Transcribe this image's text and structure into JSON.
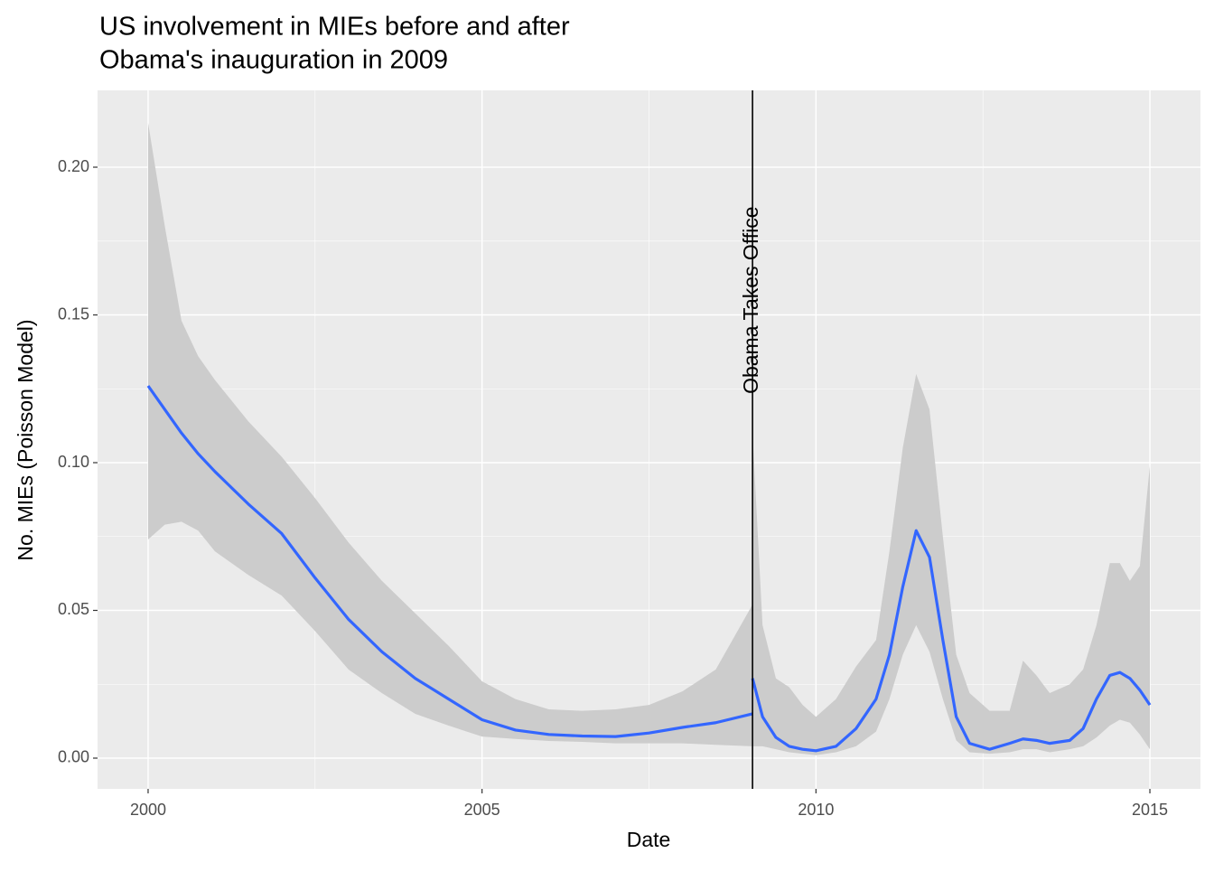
{
  "chart_data": {
    "type": "line",
    "title": [
      "US involvement in MIEs before and after",
      "Obama's inauguration in 2009"
    ],
    "x_label": "Date",
    "y_label": "No. MIEs (Poisson Model)",
    "x": [
      2000,
      2000.25,
      2000.5,
      2000.75,
      2001,
      2001.5,
      2002,
      2002.5,
      2003,
      2003.5,
      2004,
      2004.5,
      2005,
      2005.5,
      2006,
      2006.5,
      2007,
      2007.5,
      2008,
      2008.5,
      2009.05,
      2009.05,
      2009.05,
      2009.2,
      2009.4,
      2009.6,
      2009.8,
      2010,
      2010.3,
      2010.6,
      2010.9,
      2011.1,
      2011.3,
      2011.5,
      2011.7,
      2011.9,
      2012.1,
      2012.3,
      2012.6,
      2012.9,
      2013.1,
      2013.3,
      2013.5,
      2013.8,
      2014,
      2014.2,
      2014.4,
      2014.55,
      2014.7,
      2014.85,
      2015
    ],
    "values": [
      0.126,
      0.118,
      0.11,
      0.103,
      0.097,
      0.086,
      0.076,
      0.061,
      0.047,
      0.036,
      0.027,
      0.02,
      0.013,
      0.0095,
      0.008,
      0.0075,
      0.0073,
      0.0085,
      0.0104,
      0.012,
      0.015,
      null,
      0.027,
      0.014,
      0.007,
      0.004,
      0.003,
      0.0025,
      0.004,
      0.01,
      0.02,
      0.035,
      0.058,
      0.077,
      0.068,
      0.04,
      0.014,
      0.005,
      0.003,
      0.005,
      0.0065,
      0.006,
      0.005,
      0.006,
      0.01,
      0.02,
      0.028,
      0.029,
      0.027,
      0.023,
      0.018
    ],
    "lower": [
      0.074,
      0.079,
      0.08,
      0.077,
      0.07,
      0.062,
      0.055,
      0.043,
      0.03,
      0.022,
      0.015,
      0.011,
      0.0073,
      0.0065,
      0.0058,
      0.0055,
      0.005,
      0.005,
      0.005,
      0.0045,
      0.004,
      null,
      0.004,
      0.004,
      0.003,
      0.002,
      0.0015,
      0.001,
      0.002,
      0.004,
      0.009,
      0.02,
      0.035,
      0.045,
      0.036,
      0.02,
      0.006,
      0.002,
      0.0015,
      0.002,
      0.003,
      0.003,
      0.002,
      0.003,
      0.004,
      0.007,
      0.011,
      0.013,
      0.012,
      0.008,
      0.003
    ],
    "upper": [
      0.215,
      0.18,
      0.148,
      0.136,
      0.128,
      0.114,
      0.102,
      0.088,
      0.073,
      0.06,
      0.049,
      0.038,
      0.026,
      0.02,
      0.0165,
      0.016,
      0.0165,
      0.018,
      0.0226,
      0.03,
      0.052,
      null,
      0.11,
      0.045,
      0.027,
      0.024,
      0.018,
      0.014,
      0.02,
      0.031,
      0.04,
      0.07,
      0.105,
      0.13,
      0.118,
      0.075,
      0.035,
      0.022,
      0.016,
      0.016,
      0.033,
      0.028,
      0.022,
      0.025,
      0.03,
      0.045,
      0.066,
      0.066,
      0.06,
      0.065,
      0.099
    ],
    "color": "#3366FF",
    "band_color": "#cccccc",
    "xlim": [
      1999.243,
      2015.757
    ],
    "ylim": [
      -0.0104,
      0.226
    ],
    "xticks": [
      2000,
      2005,
      2010,
      2015
    ],
    "yticks": [
      {
        "value": 0,
        "label": "0.00"
      },
      {
        "value": 0.05,
        "label": "0.05"
      },
      {
        "value": 0.1,
        "label": "0.10"
      },
      {
        "value": 0.15,
        "label": "0.15"
      },
      {
        "value": 0.2,
        "label": "0.20"
      }
    ],
    "grid": true,
    "minor_grid": true,
    "vline": {
      "x": 2009.05
    },
    "annotation": {
      "text": "Obama Takes Office",
      "x": 2009.05,
      "y": 0.155
    }
  }
}
